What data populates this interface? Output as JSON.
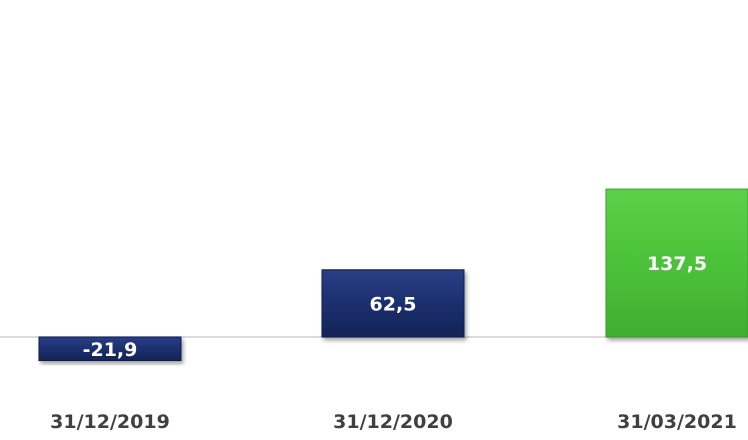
{
  "chart_data": {
    "type": "bar",
    "title": "",
    "xlabel": "",
    "ylabel": "",
    "categories": [
      "31/12/2019",
      "31/12/2020",
      "31/03/2021"
    ],
    "values": [
      -21.9,
      62.5,
      137.5
    ],
    "data_labels": [
      "-21,9",
      "62,5",
      "137,5"
    ],
    "bar_colors": [
      "#1c2f6e",
      "#1c2f6e",
      "#4cc23a"
    ],
    "ylim": [
      -40,
      145
    ],
    "grid": false,
    "legend": "none"
  }
}
